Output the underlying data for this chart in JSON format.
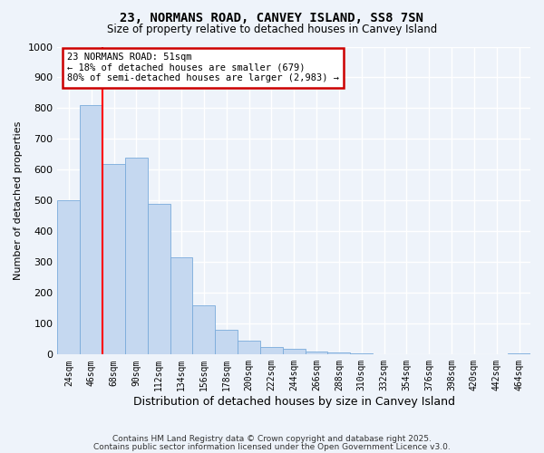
{
  "title": "23, NORMANS ROAD, CANVEY ISLAND, SS8 7SN",
  "subtitle": "Size of property relative to detached houses in Canvey Island",
  "xlabel": "Distribution of detached houses by size in Canvey Island",
  "ylabel": "Number of detached properties",
  "bar_color": "#c5d8f0",
  "bar_edge_color": "#7aabdb",
  "bin_labels": [
    "24sqm",
    "46sqm",
    "68sqm",
    "90sqm",
    "112sqm",
    "134sqm",
    "156sqm",
    "178sqm",
    "200sqm",
    "222sqm",
    "244sqm",
    "266sqm",
    "288sqm",
    "310sqm",
    "332sqm",
    "354sqm",
    "376sqm",
    "398sqm",
    "420sqm",
    "442sqm",
    "464sqm"
  ],
  "bar_values": [
    500,
    810,
    620,
    640,
    490,
    315,
    160,
    80,
    45,
    25,
    18,
    10,
    8,
    5,
    2,
    1,
    1,
    0,
    0,
    0,
    5
  ],
  "ylim": [
    0,
    1000
  ],
  "yticks": [
    0,
    100,
    200,
    300,
    400,
    500,
    600,
    700,
    800,
    900,
    1000
  ],
  "annotation_text": "23 NORMANS ROAD: 51sqm\n← 18% of detached houses are smaller (679)\n80% of semi-detached houses are larger (2,983) →",
  "vline_x": 1.5,
  "annotation_box_color": "#ffffff",
  "annotation_box_edge": "#cc0000",
  "footer_line1": "Contains HM Land Registry data © Crown copyright and database right 2025.",
  "footer_line2": "Contains public sector information licensed under the Open Government Licence v3.0.",
  "background_color": "#eef3fa",
  "grid_color": "#ffffff"
}
